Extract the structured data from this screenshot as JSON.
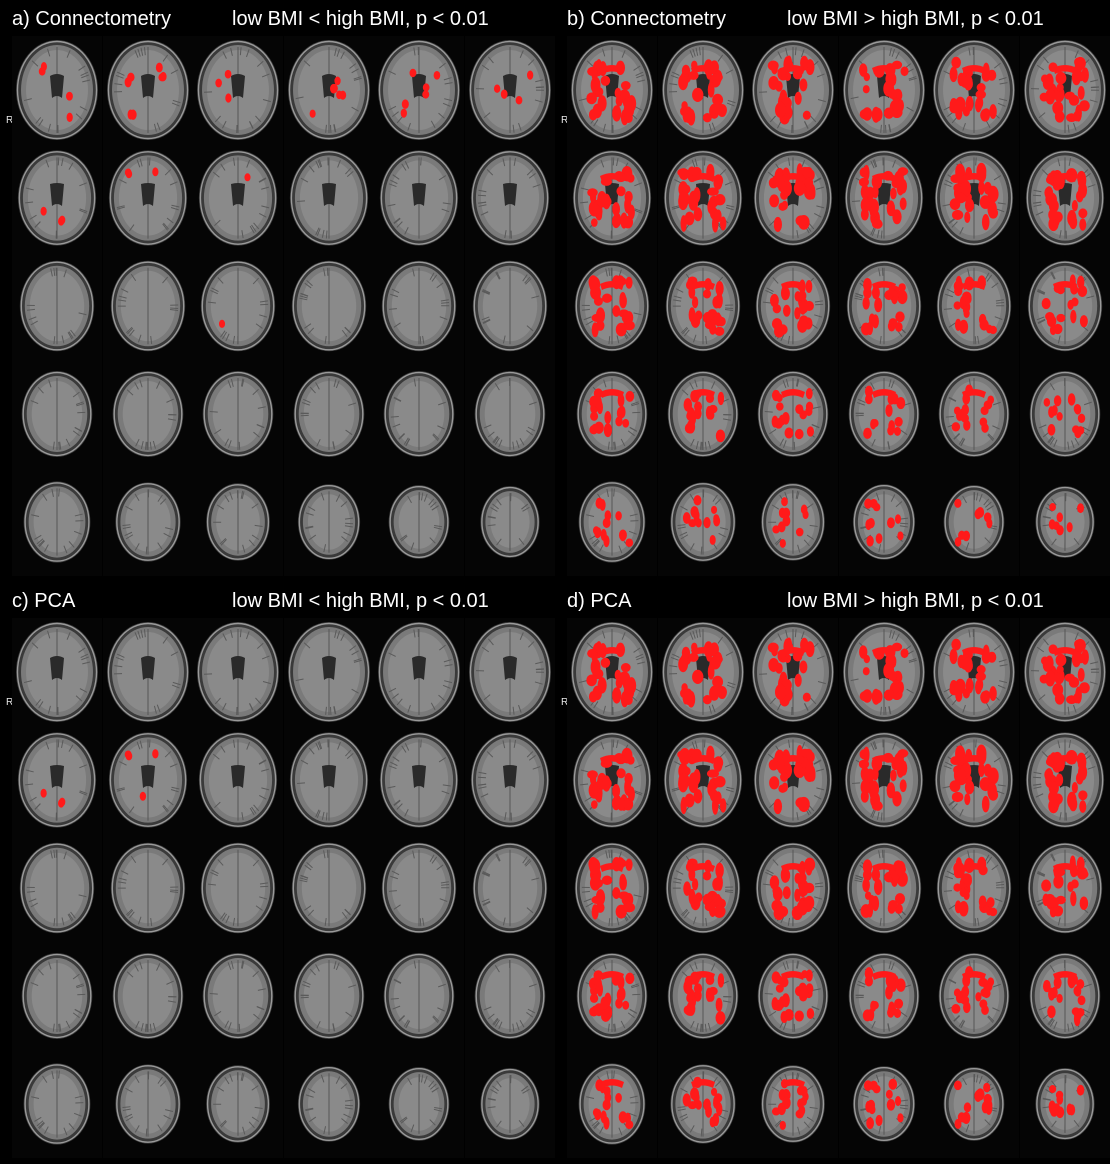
{
  "panels": [
    {
      "id": "a",
      "label": "a) Connectometry",
      "condition": "low BMI < high BMI, p < 0.01",
      "orientation_marker": "R",
      "overlay_color": "#ff1a1a",
      "activation_by_row": [
        [
          0.15,
          0.25,
          0.12,
          0.2,
          0.2,
          0.15
        ],
        [
          0.1,
          0.1,
          0.05,
          0,
          0,
          0
        ],
        [
          0,
          0,
          0.02,
          0,
          0,
          0
        ],
        [
          0,
          0,
          0,
          0,
          0,
          0
        ],
        [
          0,
          0,
          0,
          0,
          0,
          0
        ]
      ]
    },
    {
      "id": "b",
      "label": "b) Connectometry",
      "condition": "low BMI > high BMI, p < 0.01",
      "orientation_marker": "R",
      "overlay_color": "#ff1a1a",
      "activation_by_row": [
        [
          0.9,
          0.9,
          0.9,
          0.9,
          0.9,
          0.9
        ],
        [
          0.95,
          0.95,
          0.95,
          0.95,
          0.95,
          0.95
        ],
        [
          0.85,
          0.8,
          0.75,
          0.7,
          0.65,
          0.6
        ],
        [
          0.6,
          0.6,
          0.55,
          0.5,
          0.5,
          0.45
        ],
        [
          0.45,
          0.4,
          0.35,
          0.35,
          0.3,
          0.25
        ]
      ]
    },
    {
      "id": "c",
      "label": "c) PCA",
      "condition": "low BMI < high BMI, p < 0.01",
      "orientation_marker": "R",
      "overlay_color": "#ff1a1a",
      "activation_by_row": [
        [
          0,
          0,
          0,
          0,
          0,
          0
        ],
        [
          0.1,
          0.15,
          0,
          0,
          0,
          0
        ],
        [
          0,
          0,
          0,
          0,
          0,
          0
        ],
        [
          0,
          0,
          0,
          0,
          0,
          0
        ],
        [
          0,
          0,
          0,
          0,
          0,
          0
        ]
      ]
    },
    {
      "id": "d",
      "label": "d) PCA",
      "condition": "low BMI > high BMI, p < 0.01",
      "orientation_marker": "R",
      "overlay_color": "#ff1a1a",
      "activation_by_row": [
        [
          0.9,
          0.9,
          0.9,
          0.9,
          0.9,
          0.9
        ],
        [
          1.0,
          1.0,
          1.0,
          1.0,
          1.0,
          1.0
        ],
        [
          0.9,
          0.9,
          0.9,
          0.85,
          0.8,
          0.8
        ],
        [
          0.7,
          0.7,
          0.7,
          0.65,
          0.6,
          0.6
        ],
        [
          0.55,
          0.55,
          0.5,
          0.45,
          0.45,
          0.4
        ]
      ]
    }
  ]
}
